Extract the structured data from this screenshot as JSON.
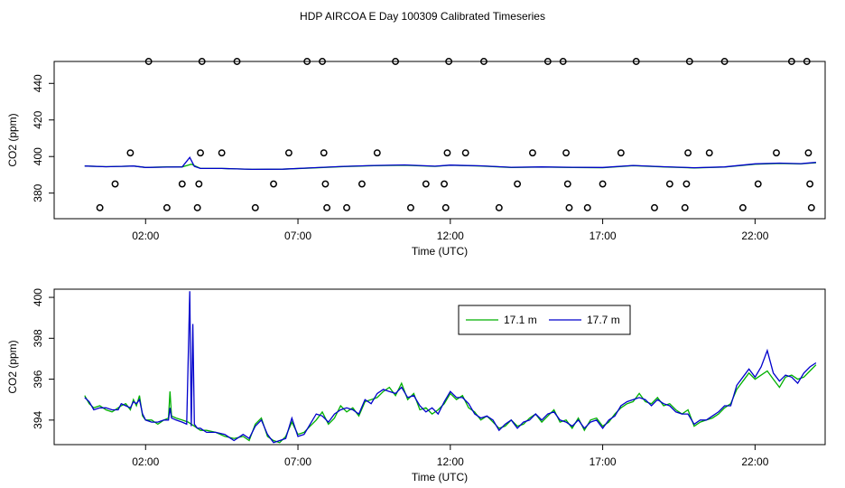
{
  "title": "HDP AIRCOA E  Day 100309  Calibrated Timeseries",
  "colors": {
    "green": "#00b000",
    "blue": "#0000cc"
  },
  "chart_data": [
    {
      "type": "line",
      "xlabel": "Time (UTC)",
      "ylabel": "CO2 (ppm)",
      "xlim": [
        -1.0,
        24.3
      ],
      "ylim": [
        366,
        452
      ],
      "xticks": [
        2,
        7,
        12,
        17,
        22
      ],
      "xtick_labels": [
        "02:00",
        "07:00",
        "12:00",
        "17:00",
        "22:00"
      ],
      "yticks": [
        360,
        380,
        400,
        420,
        440
      ],
      "yticks_visible": [
        380,
        400,
        420,
        440
      ],
      "series": [
        {
          "name": "17.1 m",
          "color": "#00b000",
          "x": [
            0.0,
            0.7,
            1.2,
            1.6,
            2.0,
            2.7,
            3.2,
            3.5,
            3.8,
            4.5,
            5.5,
            6.5,
            7.5,
            8.5,
            9.5,
            10.5,
            11.5,
            12.0,
            13.0,
            14.0,
            15.0,
            16.0,
            17.0,
            18.0,
            19.0,
            20.0,
            21.0,
            22.0,
            22.8,
            23.5,
            24.0
          ],
          "y": [
            394.8,
            394.4,
            394.6,
            394.8,
            394.0,
            394.3,
            394.3,
            395.8,
            393.5,
            393.5,
            393.0,
            393.1,
            393.8,
            394.5,
            395.0,
            395.2,
            394.6,
            395.2,
            394.8,
            394.0,
            394.2,
            394.0,
            393.9,
            395.0,
            394.3,
            393.8,
            394.2,
            395.8,
            396.2,
            396.0,
            396.6
          ]
        },
        {
          "name": "17.7 m",
          "color": "#0000cc",
          "x": [
            0.0,
            0.7,
            1.2,
            1.6,
            2.0,
            2.7,
            3.2,
            3.45,
            3.6,
            3.8,
            4.5,
            5.5,
            6.5,
            7.5,
            8.5,
            9.5,
            10.5,
            11.5,
            12.0,
            13.0,
            14.0,
            15.0,
            16.0,
            17.0,
            18.0,
            19.0,
            20.0,
            21.0,
            22.0,
            22.8,
            23.5,
            24.0
          ],
          "y": [
            394.8,
            394.4,
            394.6,
            394.8,
            394.0,
            394.2,
            394.3,
            399.5,
            394.6,
            393.5,
            393.5,
            393.0,
            393.1,
            393.9,
            394.6,
            395.1,
            395.4,
            394.7,
            395.3,
            394.9,
            394.1,
            394.3,
            394.1,
            394.0,
            395.1,
            394.4,
            393.9,
            394.3,
            396.0,
            396.4,
            396.1,
            396.8
          ]
        }
      ],
      "markers": {
        "label": "circle markers",
        "points": [
          [
            0.5,
            372
          ],
          [
            1.0,
            385
          ],
          [
            1.5,
            402
          ],
          [
            2.1,
            452
          ],
          [
            2.7,
            372
          ],
          [
            3.2,
            385
          ],
          [
            3.7,
            372
          ],
          [
            3.75,
            385
          ],
          [
            3.8,
            402
          ],
          [
            3.85,
            452
          ],
          [
            4.5,
            402
          ],
          [
            5.0,
            452
          ],
          [
            5.6,
            372
          ],
          [
            6.2,
            385
          ],
          [
            6.7,
            402
          ],
          [
            7.3,
            452
          ],
          [
            7.8,
            452
          ],
          [
            7.85,
            402
          ],
          [
            7.9,
            385
          ],
          [
            7.95,
            372
          ],
          [
            8.6,
            372
          ],
          [
            9.1,
            385
          ],
          [
            9.6,
            402
          ],
          [
            10.2,
            452
          ],
          [
            10.7,
            372
          ],
          [
            11.2,
            385
          ],
          [
            11.8,
            385
          ],
          [
            11.85,
            372
          ],
          [
            11.9,
            402
          ],
          [
            11.95,
            452
          ],
          [
            12.5,
            402
          ],
          [
            13.1,
            452
          ],
          [
            13.6,
            372
          ],
          [
            14.2,
            385
          ],
          [
            14.7,
            402
          ],
          [
            15.2,
            452
          ],
          [
            15.7,
            452
          ],
          [
            15.8,
            402
          ],
          [
            15.85,
            385
          ],
          [
            15.9,
            372
          ],
          [
            16.5,
            372
          ],
          [
            17.0,
            385
          ],
          [
            17.6,
            402
          ],
          [
            18.1,
            452
          ],
          [
            18.7,
            372
          ],
          [
            19.2,
            385
          ],
          [
            19.7,
            372
          ],
          [
            19.75,
            385
          ],
          [
            19.8,
            402
          ],
          [
            19.85,
            452
          ],
          [
            20.5,
            402
          ],
          [
            21.0,
            452
          ],
          [
            21.6,
            372
          ],
          [
            22.1,
            385
          ],
          [
            22.7,
            402
          ],
          [
            23.2,
            452
          ],
          [
            23.7,
            452
          ],
          [
            23.75,
            402
          ],
          [
            23.8,
            385
          ],
          [
            23.85,
            372
          ]
        ]
      }
    },
    {
      "type": "line",
      "xlabel": "Time (UTC)",
      "ylabel": "CO2 (ppm)",
      "xlim": [
        -1.0,
        24.3
      ],
      "ylim": [
        392.8,
        400.4
      ],
      "xticks": [
        2,
        7,
        12,
        17,
        22
      ],
      "xtick_labels": [
        "02:00",
        "07:00",
        "12:00",
        "17:00",
        "22:00"
      ],
      "yticks": [
        394,
        396,
        398,
        400
      ],
      "legend": {
        "position": "top-right-inset",
        "entries": [
          "17.1 m",
          "17.7 m"
        ]
      },
      "series": [
        {
          "name": "17.1 m",
          "color": "#00b000",
          "x": [
            0.0,
            0.15,
            0.3,
            0.5,
            0.7,
            0.9,
            1.1,
            1.2,
            1.35,
            1.5,
            1.6,
            1.7,
            1.8,
            1.9,
            2.0,
            2.2,
            2.4,
            2.6,
            2.75,
            2.8,
            2.85,
            3.0,
            3.2,
            3.4,
            3.5,
            3.6,
            3.7,
            3.8,
            4.0,
            4.3,
            4.6,
            4.9,
            5.2,
            5.4,
            5.6,
            5.8,
            6.0,
            6.2,
            6.4,
            6.6,
            6.8,
            7.0,
            7.2,
            7.4,
            7.6,
            7.8,
            8.0,
            8.2,
            8.4,
            8.6,
            8.8,
            9.0,
            9.2,
            9.4,
            9.6,
            9.8,
            10.0,
            10.2,
            10.4,
            10.6,
            10.8,
            11.0,
            11.2,
            11.4,
            11.6,
            11.8,
            12.0,
            12.2,
            12.4,
            12.6,
            12.8,
            13.0,
            13.2,
            13.4,
            13.6,
            13.8,
            14.0,
            14.2,
            14.4,
            14.6,
            14.8,
            15.0,
            15.2,
            15.4,
            15.6,
            15.8,
            16.0,
            16.2,
            16.4,
            16.6,
            16.8,
            17.0,
            17.2,
            17.4,
            17.6,
            17.8,
            18.0,
            18.2,
            18.4,
            18.6,
            18.8,
            19.0,
            19.2,
            19.4,
            19.6,
            19.8,
            20.0,
            20.2,
            20.4,
            20.6,
            20.8,
            21.0,
            21.2,
            21.4,
            21.6,
            21.8,
            22.0,
            22.2,
            22.4,
            22.6,
            22.8,
            23.0,
            23.2,
            23.4,
            23.6,
            23.8,
            24.0
          ],
          "y": [
            395.2,
            394.8,
            394.6,
            394.7,
            394.5,
            394.4,
            394.6,
            394.7,
            394.8,
            394.5,
            395.0,
            394.7,
            395.2,
            394.2,
            394.0,
            394.0,
            393.8,
            394.0,
            394.1,
            395.4,
            394.2,
            394.1,
            394.0,
            393.9,
            393.8,
            393.7,
            393.6,
            393.5,
            393.5,
            393.4,
            393.2,
            393.1,
            393.2,
            393.0,
            393.8,
            394.1,
            393.2,
            393.0,
            392.9,
            393.2,
            393.9,
            393.3,
            393.4,
            393.7,
            394.0,
            394.4,
            393.8,
            394.1,
            394.7,
            394.4,
            394.6,
            394.2,
            394.9,
            395.0,
            395.1,
            395.4,
            395.6,
            395.2,
            395.8,
            395.0,
            395.3,
            394.5,
            394.6,
            394.3,
            394.5,
            394.8,
            395.3,
            395.0,
            395.2,
            394.6,
            394.4,
            394.0,
            394.2,
            393.9,
            393.6,
            393.7,
            394.0,
            393.7,
            393.8,
            394.1,
            394.3,
            393.9,
            394.2,
            394.5,
            393.9,
            394.0,
            393.6,
            394.1,
            393.5,
            394.0,
            394.1,
            393.7,
            393.9,
            394.3,
            394.6,
            394.8,
            394.9,
            395.3,
            394.9,
            394.8,
            395.1,
            394.7,
            394.8,
            394.5,
            394.3,
            394.5,
            393.7,
            393.9,
            394.0,
            394.1,
            394.3,
            394.6,
            394.8,
            395.5,
            395.9,
            396.3,
            396.0,
            396.2,
            396.4,
            396.0,
            395.6,
            396.1,
            396.2,
            396.0,
            396.1,
            396.4,
            396.7
          ],
          "_meta": {}
        },
        {
          "name": "17.7 m",
          "color": "#0000cc",
          "x": [
            0.0,
            0.15,
            0.3,
            0.5,
            0.7,
            0.9,
            1.1,
            1.2,
            1.35,
            1.5,
            1.6,
            1.7,
            1.8,
            1.9,
            2.0,
            2.2,
            2.4,
            2.6,
            2.75,
            2.8,
            2.85,
            3.0,
            3.2,
            3.35,
            3.45,
            3.5,
            3.55,
            3.6,
            3.7,
            3.8,
            4.0,
            4.3,
            4.6,
            4.9,
            5.2,
            5.4,
            5.6,
            5.8,
            6.0,
            6.2,
            6.4,
            6.6,
            6.8,
            7.0,
            7.2,
            7.4,
            7.6,
            7.8,
            8.0,
            8.2,
            8.4,
            8.6,
            8.8,
            9.0,
            9.2,
            9.4,
            9.6,
            9.8,
            10.0,
            10.2,
            10.4,
            10.6,
            10.8,
            11.0,
            11.2,
            11.4,
            11.6,
            11.8,
            12.0,
            12.2,
            12.4,
            12.6,
            12.8,
            13.0,
            13.2,
            13.4,
            13.6,
            13.8,
            14.0,
            14.2,
            14.4,
            14.6,
            14.8,
            15.0,
            15.2,
            15.4,
            15.6,
            15.8,
            16.0,
            16.2,
            16.4,
            16.6,
            16.8,
            17.0,
            17.2,
            17.4,
            17.6,
            17.8,
            18.0,
            18.2,
            18.4,
            18.6,
            18.8,
            19.0,
            19.2,
            19.4,
            19.6,
            19.8,
            20.0,
            20.2,
            20.4,
            20.6,
            20.8,
            21.0,
            21.2,
            21.4,
            21.6,
            21.8,
            22.0,
            22.2,
            22.4,
            22.6,
            22.8,
            23.0,
            23.2,
            23.4,
            23.6,
            23.8,
            24.0
          ],
          "y": [
            395.1,
            394.9,
            394.5,
            394.6,
            394.6,
            394.5,
            394.5,
            394.8,
            394.7,
            394.6,
            394.9,
            394.8,
            395.0,
            394.3,
            394.0,
            393.9,
            393.9,
            394.0,
            394.0,
            394.6,
            394.1,
            394.0,
            393.9,
            393.8,
            400.3,
            393.7,
            398.7,
            393.8,
            393.6,
            393.6,
            393.4,
            393.4,
            393.3,
            393.0,
            393.3,
            393.1,
            393.7,
            394.0,
            393.3,
            392.9,
            393.0,
            393.1,
            394.1,
            393.2,
            393.3,
            393.8,
            394.3,
            394.2,
            393.9,
            394.3,
            394.5,
            394.6,
            394.5,
            394.3,
            395.0,
            394.8,
            395.3,
            395.5,
            395.4,
            395.3,
            395.6,
            395.1,
            395.2,
            394.7,
            394.4,
            394.6,
            394.3,
            394.9,
            395.4,
            395.1,
            395.1,
            394.8,
            394.3,
            394.1,
            394.2,
            394.0,
            393.5,
            393.8,
            394.0,
            393.6,
            393.9,
            394.0,
            394.3,
            394.0,
            394.3,
            394.4,
            394.0,
            393.9,
            393.7,
            394.0,
            393.6,
            393.9,
            394.0,
            393.6,
            394.0,
            394.2,
            394.7,
            394.9,
            395.0,
            395.1,
            395.0,
            394.7,
            395.0,
            394.8,
            394.7,
            394.4,
            394.3,
            394.3,
            393.8,
            394.0,
            394.0,
            394.2,
            394.4,
            394.7,
            394.7,
            395.7,
            396.1,
            396.5,
            396.1,
            396.6,
            397.4,
            396.3,
            395.9,
            396.2,
            396.1,
            395.8,
            396.3,
            396.6,
            396.8
          ],
          "_meta": {}
        }
      ]
    }
  ]
}
